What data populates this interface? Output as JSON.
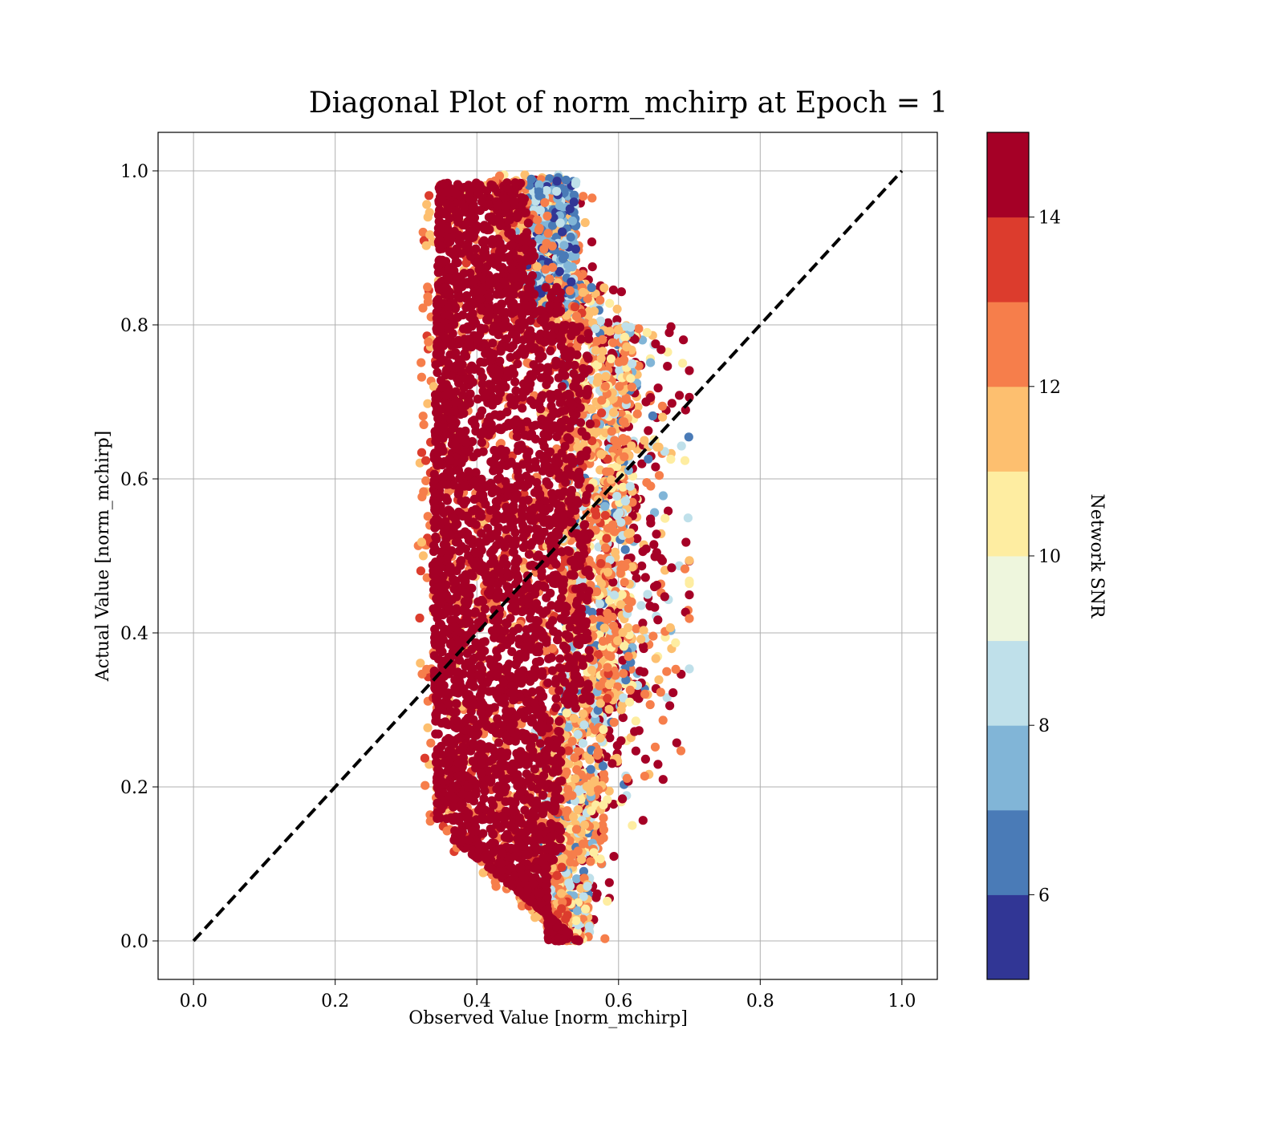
{
  "chart_data": {
    "type": "scatter",
    "title": "Diagonal Plot of norm_mchirp at Epoch = 1",
    "xlabel": "Observed Value [norm_mchirp]",
    "ylabel": "Actual Value [norm_mchirp]",
    "xlim": [
      -0.05,
      1.05
    ],
    "ylim": [
      -0.05,
      1.05
    ],
    "x_ticks": [
      0.0,
      0.2,
      0.4,
      0.6,
      0.8,
      1.0
    ],
    "y_ticks": [
      0.0,
      0.2,
      0.4,
      0.6,
      0.8,
      1.0
    ],
    "x_tick_labels": [
      "0.0",
      "0.2",
      "0.4",
      "0.6",
      "0.8",
      "1.0"
    ],
    "y_tick_labels": [
      "0.0",
      "0.2",
      "0.4",
      "0.6",
      "0.8",
      "1.0"
    ],
    "grid": true,
    "reference_line": {
      "x": [
        0.0,
        1.0
      ],
      "y": [
        0.0,
        1.0
      ],
      "style": "dashed",
      "color": "#000000"
    },
    "colorbar": {
      "label": "Network SNR",
      "range": [
        5,
        15
      ],
      "ticks": [
        6,
        8,
        10,
        12,
        14
      ],
      "tick_labels": [
        "6",
        "8",
        "10",
        "12",
        "14"
      ],
      "colors": [
        "#313695",
        "#4a7bb7",
        "#81b5d7",
        "#bfe0ea",
        "#eef6dd",
        "#feeda1",
        "#fdbf6f",
        "#f67e4b",
        "#dc3c2d",
        "#a50026"
      ]
    },
    "point_cloud": {
      "x_range": [
        0.3,
        0.7
      ],
      "y_range": [
        0.0,
        1.0
      ],
      "dense_core_x": [
        0.33,
        0.5
      ],
      "point_color_rule": "colored by Network SNR; majority of points at SNR >= 14"
    }
  }
}
